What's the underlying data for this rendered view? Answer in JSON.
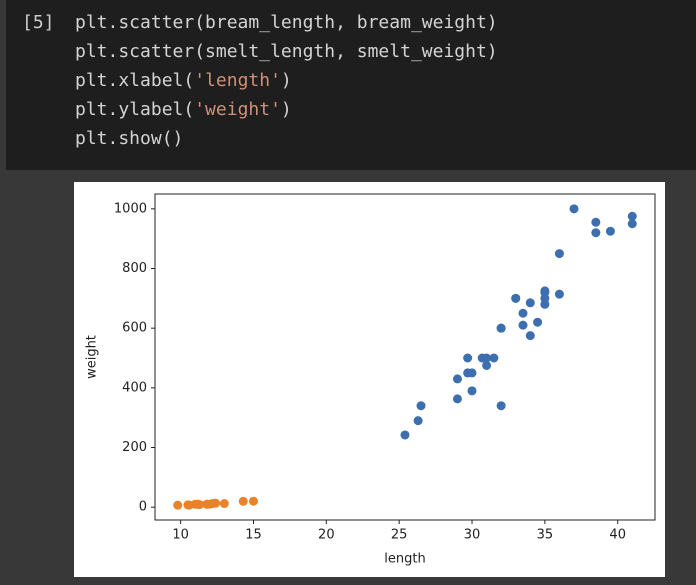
{
  "cell": {
    "prompt": "[5]",
    "lines": [
      [
        "plt.scatter(bream_length, bream_weight)"
      ],
      [
        "plt.scatter(smelt_length, smelt_weight)"
      ],
      [
        "plt.xlabel(",
        "'length'",
        ")"
      ],
      [
        "plt.ylabel(",
        "'weight'",
        ")"
      ],
      [
        "plt.show()"
      ]
    ]
  },
  "chart_data": {
    "type": "scatter",
    "x_label": "length",
    "y_label": "weight",
    "series": [
      {
        "color": "#3d6faf",
        "x": [
          25.4,
          26.3,
          26.5,
          29.0,
          29.0,
          29.7,
          29.7,
          30.0,
          30.0,
          30.7,
          31.0,
          31.0,
          31.5,
          32.0,
          32.0,
          32.0,
          33.0,
          33.0,
          33.5,
          33.5,
          34.0,
          34.0,
          34.5,
          35.0,
          35.0,
          35.0,
          35.0,
          36.0,
          36.0,
          37.0,
          38.5,
          38.5,
          39.5,
          41.0,
          41.0
        ],
        "values": [
          242,
          290,
          340,
          363,
          430,
          450,
          500,
          390,
          450,
          500,
          475,
          500,
          500,
          340,
          600,
          600,
          700,
          700,
          610,
          650,
          575,
          685,
          620,
          680,
          700,
          725,
          720,
          714,
          850,
          1000,
          920,
          955,
          925,
          975,
          950
        ]
      },
      {
        "color": "#e8832c",
        "x": [
          9.8,
          10.5,
          10.6,
          11.0,
          11.2,
          11.3,
          11.8,
          11.8,
          12.0,
          12.2,
          12.4,
          13.0,
          14.3,
          15.0
        ],
        "values": [
          6.7,
          7.5,
          7.0,
          9.7,
          9.8,
          8.7,
          10.0,
          9.9,
          9.8,
          12.2,
          13.4,
          12.2,
          19.7,
          19.9
        ]
      }
    ],
    "xlim": [
      8.24,
      42.56
    ],
    "xticks": [
      10,
      15,
      20,
      25,
      30,
      35,
      40
    ],
    "ylim": [
      -43,
      1049.7
    ],
    "yticks": [
      0,
      200,
      400,
      600,
      800,
      1000
    ]
  }
}
